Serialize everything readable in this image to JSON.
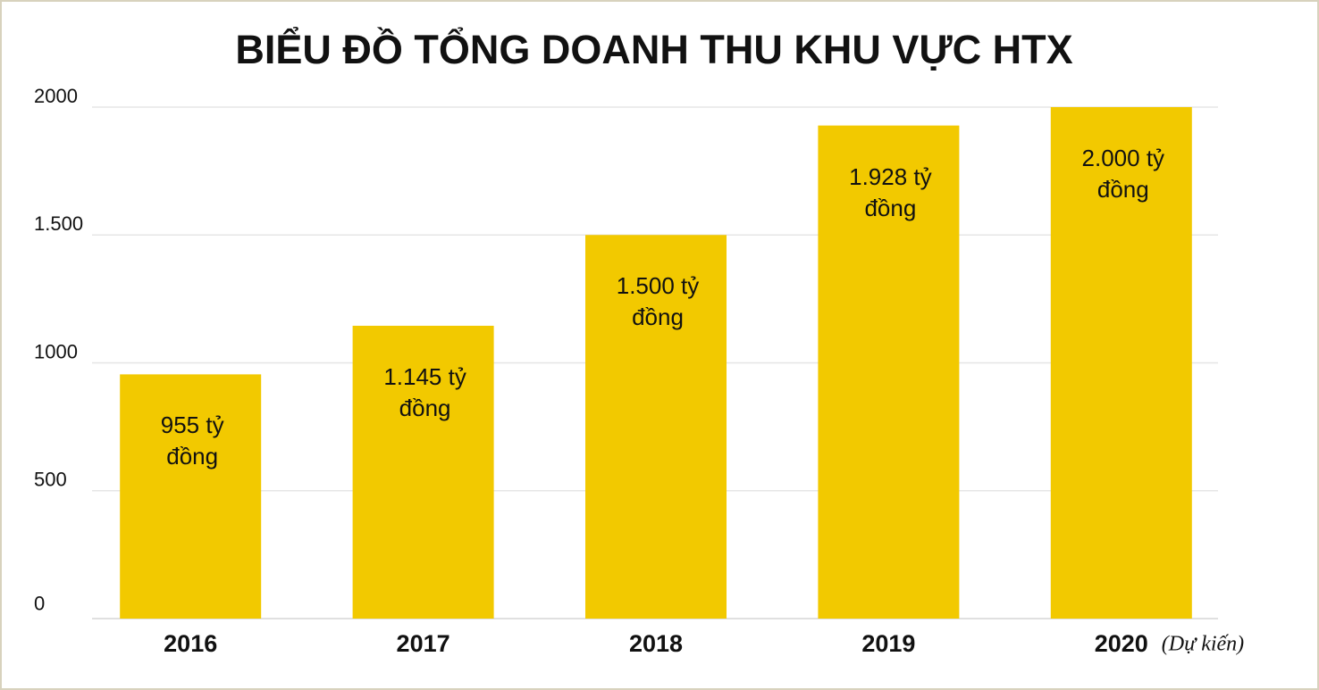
{
  "chart_data": {
    "type": "bar",
    "title": "BIỂU ĐỒ TỔNG DOANH THU KHU VỰC HTX",
    "categories": [
      "2016",
      "2017",
      "2018",
      "2019",
      "2020"
    ],
    "values": [
      955,
      1145,
      1500,
      1928,
      2000
    ],
    "value_labels": [
      "955 tỷ đồng",
      "1.145 tỷ đồng",
      "1.500 tỷ đồng",
      "1.928 tỷ đồng",
      "2.000 tỷ đồng"
    ],
    "annotation": "(Dự kiến)",
    "color": "#f2c900",
    "ylim": [
      0,
      2000
    ],
    "yticks": [
      0,
      500,
      1000,
      {
        "value": 1500,
        "label": "1.500"
      },
      2000
    ],
    "grid": true
  }
}
